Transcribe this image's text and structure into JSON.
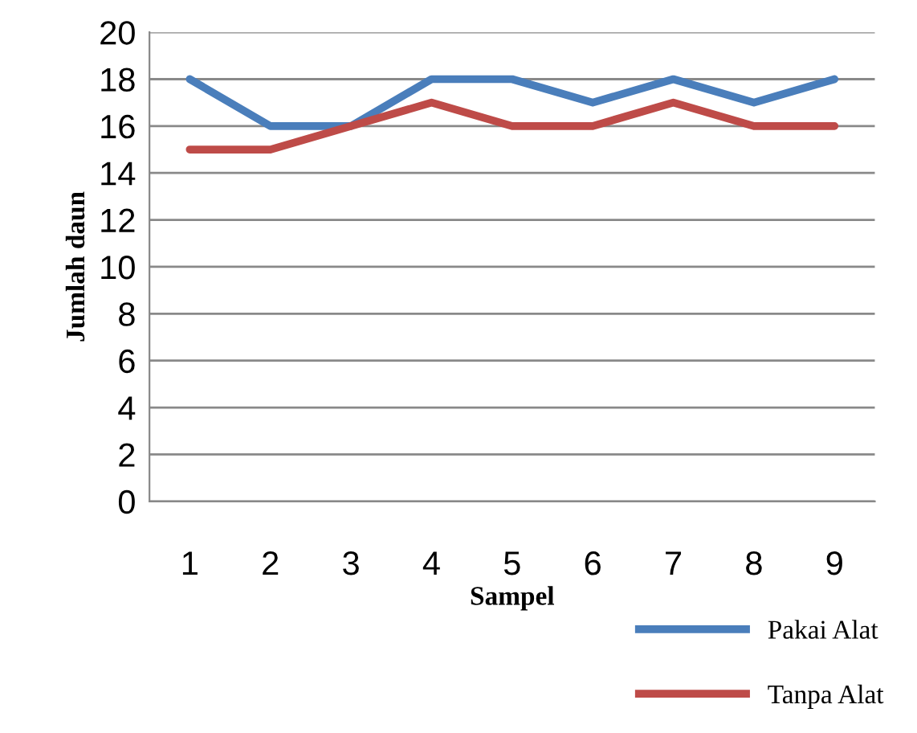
{
  "chart_data": {
    "type": "line",
    "ylabel": "Jumlah daun",
    "xlabel": "Sampel",
    "categories": [
      "1",
      "2",
      "3",
      "4",
      "5",
      "6",
      "7",
      "8",
      "9"
    ],
    "series": [
      {
        "name": "Pakai Alat",
        "color": "#4a7ebb",
        "values": [
          18,
          16,
          16,
          18,
          18,
          17,
          18,
          17,
          18
        ]
      },
      {
        "name": "Tanpa Alat",
        "color": "#be4b48",
        "values": [
          15,
          15,
          16,
          17,
          16,
          16,
          17,
          16,
          16
        ]
      }
    ],
    "ylim": [
      0,
      20
    ],
    "yticks": [
      0,
      2,
      4,
      6,
      8,
      10,
      12,
      14,
      16,
      18,
      20
    ],
    "grid": "y",
    "legend": "bottom right",
    "marker": "none",
    "line_style": "solid"
  }
}
